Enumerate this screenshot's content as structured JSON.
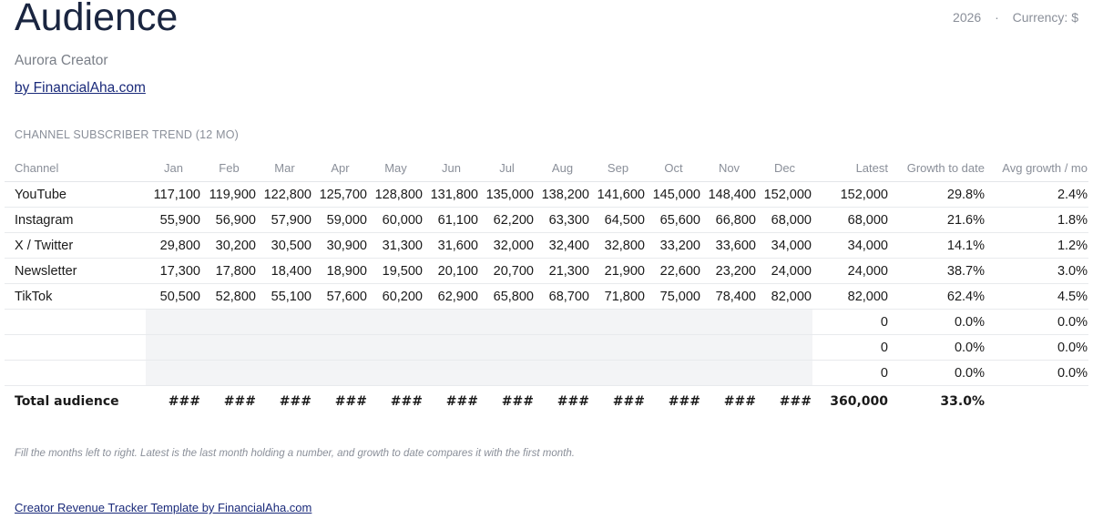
{
  "header": {
    "title": "Audience",
    "year": "2026",
    "separator": "·",
    "currency": "Currency: $",
    "subtitle": "Aurora Creator",
    "byline": "by FinancialAha.com"
  },
  "section_title": "CHANNEL SUBSCRIBER TREND (12 MO)",
  "table": {
    "headers": [
      "Channel",
      "Jan",
      "Feb",
      "Mar",
      "Apr",
      "May",
      "Jun",
      "Jul",
      "Aug",
      "Sep",
      "Oct",
      "Nov",
      "Dec",
      "Latest",
      "Growth to date",
      "Avg growth / mo"
    ],
    "rows": [
      {
        "channel": "YouTube",
        "months": [
          "117,100",
          "119,900",
          "122,800",
          "125,700",
          "128,800",
          "131,800",
          "135,000",
          "138,200",
          "141,600",
          "145,000",
          "148,400",
          "152,000"
        ],
        "latest": "152,000",
        "growth": "29.8%",
        "avg": "2.4%"
      },
      {
        "channel": "Instagram",
        "months": [
          "55,900",
          "56,900",
          "57,900",
          "59,000",
          "60,000",
          "61,100",
          "62,200",
          "63,300",
          "64,500",
          "65,600",
          "66,800",
          "68,000"
        ],
        "latest": "68,000",
        "growth": "21.6%",
        "avg": "1.8%"
      },
      {
        "channel": "X / Twitter",
        "months": [
          "29,800",
          "30,200",
          "30,500",
          "30,900",
          "31,300",
          "31,600",
          "32,000",
          "32,400",
          "32,800",
          "33,200",
          "33,600",
          "34,000"
        ],
        "latest": "34,000",
        "growth": "14.1%",
        "avg": "1.2%"
      },
      {
        "channel": "Newsletter",
        "months": [
          "17,300",
          "17,800",
          "18,400",
          "18,900",
          "19,500",
          "20,100",
          "20,700",
          "21,300",
          "21,900",
          "22,600",
          "23,200",
          "24,000"
        ],
        "latest": "24,000",
        "growth": "38.7%",
        "avg": "3.0%"
      },
      {
        "channel": "TikTok",
        "months": [
          "50,500",
          "52,800",
          "55,100",
          "57,600",
          "60,200",
          "62,900",
          "65,800",
          "68,700",
          "71,800",
          "75,000",
          "78,400",
          "82,000"
        ],
        "latest": "82,000",
        "growth": "62.4%",
        "avg": "4.5%"
      },
      {
        "channel": "",
        "months": [
          "",
          "",
          "",
          "",
          "",
          "",
          "",
          "",
          "",
          "",
          "",
          ""
        ],
        "latest": "0",
        "growth": "0.0%",
        "avg": "0.0%"
      },
      {
        "channel": "",
        "months": [
          "",
          "",
          "",
          "",
          "",
          "",
          "",
          "",
          "",
          "",
          "",
          ""
        ],
        "latest": "0",
        "growth": "0.0%",
        "avg": "0.0%"
      },
      {
        "channel": "",
        "months": [
          "",
          "",
          "",
          "",
          "",
          "",
          "",
          "",
          "",
          "",
          "",
          ""
        ],
        "latest": "0",
        "growth": "0.0%",
        "avg": "0.0%"
      }
    ],
    "total": {
      "label": "Total audience",
      "months": [
        "###",
        "###",
        "###",
        "###",
        "###",
        "###",
        "###",
        "###",
        "###",
        "###",
        "###",
        "###"
      ],
      "latest": "360,000",
      "growth": "33.0%",
      "avg": ""
    }
  },
  "note": "Fill the months left to right. Latest is the last month holding a number, and growth to date compares it with the first month.",
  "footer_link": "Creator Revenue Tracker Template by FinancialAha.com"
}
